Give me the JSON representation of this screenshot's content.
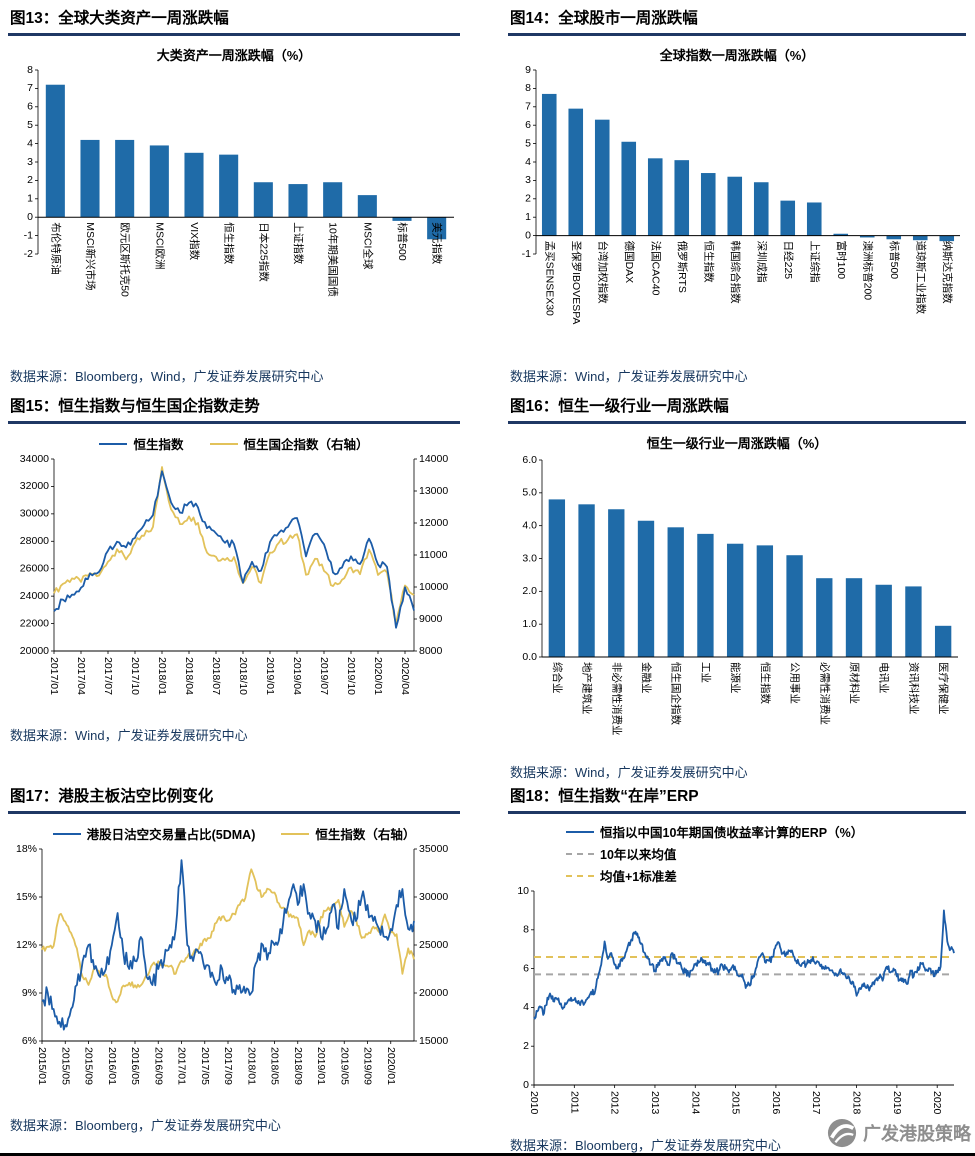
{
  "page": {
    "watermark": "广发港股策略"
  },
  "colors": {
    "bar": "#1F6BA8",
    "blue_line": "#1C5CA8",
    "gold_line": "#E2C25A",
    "gray_dash": "#A6A6A6",
    "header_rule": "#1F3864",
    "source_text": "#17375E"
  },
  "figures": [
    {
      "id": "fig13",
      "header": "图13：全球大类资产一周涨跌幅",
      "source": "数据来源：Bloomberg，Wind，广发证券发展研究中心"
    },
    {
      "id": "fig14",
      "header": "图14：全球股市一周涨跌幅",
      "source": "数据来源：Wind，广发证券发展研究中心"
    },
    {
      "id": "fig15",
      "header": "图15：恒生指数与恒生国企指数走势",
      "source": "数据来源：Wind，广发证券发展研究中心"
    },
    {
      "id": "fig16",
      "header": "图16：恒生一级行业一周涨跌幅",
      "source": "数据来源：Wind，广发证券发展研究中心"
    },
    {
      "id": "fig17",
      "header": "图17：港股主板沽空比例变化",
      "source": "数据来源：Bloomberg，广发证券发展研究中心"
    },
    {
      "id": "fig18",
      "header": "图18：恒生指数“在岸”ERP",
      "source": "数据来源：Bloomberg，广发证券发展研究中心"
    }
  ],
  "chart_data": [
    {
      "type": "bar",
      "title": "大类资产一周涨跌幅（%）",
      "categories": [
        "布伦特原油",
        "MSCI新兴市场",
        "欧元区斯托克50",
        "MSCI欧洲",
        "VIX指数",
        "恒生指数",
        "日本225指数",
        "上证指数",
        "10年期美国国债",
        "MSCI全球",
        "标普500",
        "美元指数"
      ],
      "values": [
        7.2,
        4.2,
        4.2,
        3.9,
        3.5,
        3.4,
        1.9,
        1.8,
        1.9,
        1.2,
        -0.2,
        -1.2
      ],
      "ylim": [
        -2,
        8
      ],
      "yticks": [
        8,
        7,
        6,
        5,
        4,
        3,
        2,
        1,
        0,
        -1,
        -2
      ],
      "bar_color": "#1F6BA8"
    },
    {
      "type": "bar",
      "title": "全球指数一周涨跌幅（%）",
      "categories": [
        "孟买SENSEX30",
        "圣保罗IBOVESPA",
        "台湾加权指数",
        "德国DAX",
        "法国CAC40",
        "俄罗斯RTS",
        "恒生指数",
        "韩国综合指数",
        "深圳成指",
        "日经225",
        "上证综指",
        "富时100",
        "澳洲标普200",
        "标普500",
        "道琼斯工业指数",
        "纳斯达克指数"
      ],
      "values": [
        7.7,
        6.9,
        6.3,
        5.1,
        4.2,
        4.1,
        3.4,
        3.2,
        2.9,
        1.9,
        1.8,
        0.1,
        -0.1,
        -0.2,
        -0.25,
        -0.3
      ],
      "ylim": [
        -1,
        9
      ],
      "yticks": [
        9,
        8,
        7,
        6,
        5,
        4,
        3,
        2,
        1,
        0,
        -1
      ],
      "bar_color": "#1F6BA8"
    },
    {
      "type": "line",
      "x_labels": [
        "2017/01",
        "2017/04",
        "2017/07",
        "2017/10",
        "2018/01",
        "2018/04",
        "2018/07",
        "2018/10",
        "2019/01",
        "2019/04",
        "2019/07",
        "2019/10",
        "2020/01",
        "2020/04"
      ],
      "x_label_positions": [
        0,
        3,
        6,
        9,
        12,
        15,
        18,
        21,
        24,
        27,
        30,
        33,
        36,
        39
      ],
      "left_ylim": [
        20000,
        34000
      ],
      "left_yticks": [
        34000,
        32000,
        30000,
        28000,
        26000,
        24000,
        22000,
        20000
      ],
      "right_ylim": [
        8000,
        14000
      ],
      "right_yticks": [
        14000,
        13000,
        12000,
        11000,
        10000,
        9000,
        8000
      ],
      "legend": [
        {
          "label": "恒生指数",
          "color": "#1C5CA8",
          "dash": false
        },
        {
          "label": "恒生国企指数（右轴）",
          "color": "#E2C25A",
          "dash": false
        }
      ],
      "series": [
        {
          "name": "恒生国企指数（右轴）",
          "axis": "right",
          "color": "#E2C25A",
          "jitter": 110,
          "values": [
            9800,
            10100,
            10270,
            10160,
            10430,
            10360,
            10790,
            11180,
            10860,
            11380,
            11600,
            11880,
            13750,
            12435,
            11966,
            12206,
            12002,
            11074,
            10944,
            10843,
            10938,
            10120,
            10629,
            10124,
            11076,
            11387,
            11482,
            11650,
            10380,
            10882,
            10504,
            10028,
            10229,
            10611,
            10399,
            11168,
            10374,
            10453,
            8850,
            10047,
            9750
          ]
        },
        {
          "name": "恒生指数",
          "axis": "left",
          "color": "#1C5CA8",
          "jitter": 260,
          "values": [
            22900,
            23740,
            24110,
            24615,
            25660,
            25765,
            27324,
            27970,
            27554,
            28245,
            29177,
            29919,
            33100,
            30845,
            30093,
            30808,
            30468,
            28955,
            28583,
            27888,
            27788,
            24980,
            26506,
            25846,
            27942,
            28633,
            29051,
            29699,
            26901,
            28542,
            27778,
            25725,
            26092,
            26907,
            26346,
            28190,
            26313,
            26130,
            21700,
            24644,
            22950
          ]
        }
      ]
    },
    {
      "type": "bar",
      "title": "恒生一级行业一周涨跌幅（%）",
      "categories": [
        "综合业",
        "地产建筑业",
        "非必需性消费业",
        "金融业",
        "恒生国企指数",
        "工业",
        "能源业",
        "恒生指数",
        "公用事业",
        "必需性消费业",
        "原材料业",
        "电讯业",
        "资讯科技业",
        "医疗保健业"
      ],
      "values": [
        4.8,
        4.65,
        4.5,
        4.15,
        3.95,
        3.75,
        3.45,
        3.4,
        3.1,
        2.4,
        2.4,
        2.2,
        2.15,
        0.95
      ],
      "ylim": [
        0,
        6
      ],
      "yticks": [
        "6.0",
        "5.0",
        "4.0",
        "3.0",
        "2.0",
        "1.0",
        "0.0"
      ],
      "bar_color": "#1F6BA8"
    },
    {
      "type": "line",
      "x_labels": [
        "2015/01",
        "2015/05",
        "2015/09",
        "2016/01",
        "2016/05",
        "2016/09",
        "2017/01",
        "2017/05",
        "2017/09",
        "2018/01",
        "2018/05",
        "2018/09",
        "2019/01",
        "2019/05",
        "2019/09",
        "2020/01"
      ],
      "x_label_positions": [
        0,
        4,
        8,
        12,
        16,
        20,
        24,
        28,
        32,
        36,
        40,
        44,
        48,
        52,
        56,
        60
      ],
      "left_ylim": [
        6,
        18
      ],
      "left_yticks": [
        "18%",
        "15%",
        "12%",
        "9%",
        "6%"
      ],
      "right_ylim": [
        15000,
        35000
      ],
      "right_yticks": [
        35000,
        30000,
        25000,
        20000,
        15000
      ],
      "legend": [
        {
          "label": "港股日沽空交易量占比(5DMA)",
          "color": "#1C5CA8",
          "dash": false
        },
        {
          "label": "恒生指数（右轴）",
          "color": "#E2C25A",
          "dash": false
        }
      ],
      "series": [
        {
          "name": "恒生指数（右轴）",
          "axis": "right",
          "color": "#E2C25A",
          "jitter": 300,
          "values": [
            24507,
            24823,
            24901,
            28133,
            27424,
            26250,
            24636,
            21671,
            20846,
            22640,
            21996,
            21914,
            19683,
            19112,
            20777,
            21067,
            20815,
            20794,
            21891,
            22977,
            23297,
            22935,
            22790,
            22001,
            23361,
            23741,
            24112,
            24615,
            25661,
            25765,
            27324,
            27970,
            27554,
            28246,
            29177,
            29919,
            32887,
            30845,
            30093,
            30808,
            30469,
            28955,
            28583,
            27888,
            27789,
            24980,
            26507,
            25846,
            27942,
            28633,
            29051,
            29699,
            26901,
            28543,
            27778,
            25725,
            26092,
            26907,
            26346,
            28190,
            26313,
            26130,
            22000,
            24644,
            23500
          ]
        },
        {
          "name": "港股日沽空交易量占比(5DMA)",
          "axis": "left",
          "color": "#1C5CA8",
          "jitter": 0.55,
          "values": [
            8.5,
            9.0,
            8.0,
            7.2,
            7.0,
            8.0,
            9.5,
            11.0,
            12.0,
            10.5,
            10.0,
            10.5,
            12.0,
            14.0,
            11.5,
            10.5,
            11.0,
            12.5,
            10.0,
            9.5,
            10.5,
            11.0,
            12.0,
            13.0,
            17.3,
            12.0,
            11.0,
            11.5,
            10.5,
            10.0,
            9.5,
            10.5,
            9.8,
            9.2,
            9.5,
            9.0,
            9.0,
            11.0,
            12.0,
            11.5,
            12.0,
            13.0,
            14.0,
            15.5,
            14.5,
            15.8,
            14.0,
            13.5,
            12.5,
            13.0,
            14.5,
            13.0,
            15.5,
            14.0,
            13.5,
            15.0,
            14.5,
            13.5,
            13.0,
            12.5,
            13.0,
            14.5,
            15.5,
            13.0,
            13.5
          ]
        }
      ]
    },
    {
      "type": "line",
      "x_labels": [
        "2010",
        "2011",
        "2012",
        "2013",
        "2014",
        "2015",
        "2016",
        "2017",
        "2018",
        "2019",
        "2020"
      ],
      "x_label_positions": [
        0,
        12,
        24,
        36,
        48,
        60,
        72,
        84,
        96,
        108,
        120
      ],
      "left_ylim": [
        0,
        10
      ],
      "left_yticks": [
        10,
        8,
        6,
        4,
        2,
        0
      ],
      "legend": [
        {
          "label": "恒指以中国10年期国债收益率计算的ERP（%）",
          "color": "#1C5CA8",
          "dash": false
        },
        {
          "label": "10年以来均值",
          "color": "#A6A6A6",
          "dash": true
        },
        {
          "label": "均值+1标准差",
          "color": "#E2C25A",
          "dash": true
        }
      ],
      "series": [
        {
          "name": "10年以来均值",
          "axis": "left",
          "color": "#A6A6A6",
          "const": 5.7
        },
        {
          "name": "均值+1标准差",
          "axis": "left",
          "color": "#E2C25A",
          "const": 6.6
        },
        {
          "name": "恒指以中国10年期国债收益率计算的ERP（%）",
          "axis": "left",
          "color": "#1C5CA8",
          "jitter": 0.18,
          "values": [
            3.5,
            3.8,
            4.0,
            3.7,
            4.5,
            4.6,
            4.3,
            4.4,
            4.2,
            4.0,
            4.3,
            4.5,
            4.4,
            4.2,
            4.3,
            4.2,
            4.5,
            4.8,
            4.7,
            5.5,
            6.2,
            7.4,
            6.5,
            6.8,
            6.2,
            6.0,
            6.5,
            6.6,
            7.2,
            7.5,
            7.8,
            7.6,
            7.3,
            6.8,
            6.5,
            6.2,
            5.9,
            6.3,
            6.5,
            6.6,
            6.2,
            6.8,
            6.5,
            6.3,
            6.0,
            5.8,
            5.7,
            5.9,
            6.2,
            6.3,
            6.5,
            6.4,
            6.2,
            6.0,
            5.8,
            5.9,
            6.2,
            6.0,
            5.8,
            6.1,
            5.9,
            5.6,
            5.7,
            5.0,
            5.2,
            5.5,
            6.0,
            6.6,
            6.8,
            6.3,
            6.4,
            6.6,
            7.2,
            7.3,
            6.8,
            6.7,
            6.9,
            6.8,
            6.4,
            6.2,
            6.3,
            6.2,
            6.4,
            6.6,
            6.3,
            6.2,
            6.1,
            6.0,
            5.9,
            5.8,
            5.7,
            5.9,
            5.7,
            5.5,
            5.4,
            5.3,
            4.6,
            5.0,
            5.1,
            5.0,
            5.0,
            5.3,
            5.5,
            5.7,
            5.5,
            6.1,
            5.8,
            6.0,
            5.6,
            5.4,
            5.3,
            5.2,
            5.9,
            5.6,
            5.8,
            6.3,
            6.1,
            5.9,
            6.0,
            5.6,
            5.9,
            6.1,
            9.0,
            7.4,
            7.0,
            6.8
          ]
        }
      ]
    }
  ]
}
